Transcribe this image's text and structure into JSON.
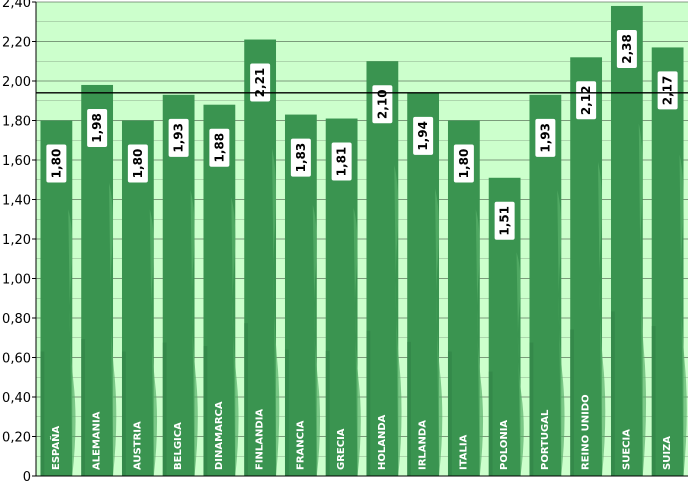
{
  "chart_data": {
    "type": "bar",
    "title": "",
    "xlabel": "",
    "ylabel": "",
    "categories": [
      "ESPAÑA",
      "ALEMANIA",
      "AUSTRIA",
      "BELGICA",
      "DINAMARCA",
      "FINLANDIA",
      "FRANCIA",
      "GRECIA",
      "HOLANDA",
      "IRLANDA",
      "ITALIA",
      "POLONIA",
      "PORTUGAL",
      "REINO UNIDO",
      "SUECIA",
      "SUIZA"
    ],
    "values": [
      1.8,
      1.98,
      1.8,
      1.93,
      1.88,
      2.21,
      1.83,
      1.81,
      2.1,
      1.94,
      1.8,
      1.51,
      1.93,
      2.12,
      2.38,
      2.17
    ],
    "data_labels": [
      "1,80",
      "1,98",
      "1,80",
      "1,93",
      "1,88",
      "2,21",
      "1,83",
      "1,81",
      "2,10",
      "1,94",
      "1,80",
      "1,51",
      "1,93",
      "2,12",
      "2,38",
      "2,17"
    ],
    "ylim": [
      0,
      2.4
    ],
    "yticks": [
      0,
      0.2,
      0.4,
      0.6,
      0.8,
      1.0,
      1.2,
      1.4,
      1.6,
      1.8,
      2.0,
      2.2,
      2.4
    ],
    "ytick_labels": [
      "0",
      "0,20",
      "0,40",
      "0,60",
      "0,80",
      "1,00",
      "1,20",
      "1,40",
      "1,60",
      "1,80",
      "2,00",
      "2,20",
      "2,40"
    ],
    "reference_line": 1.94,
    "grid": true,
    "minor_grid": true,
    "legend": "none",
    "colors": {
      "background": "#ccffcc",
      "bar": "#3a9450",
      "bar_dark": "#2e7d44",
      "bar_light": "#58b06a",
      "grid": "#556b55",
      "reference": "#000000"
    }
  }
}
